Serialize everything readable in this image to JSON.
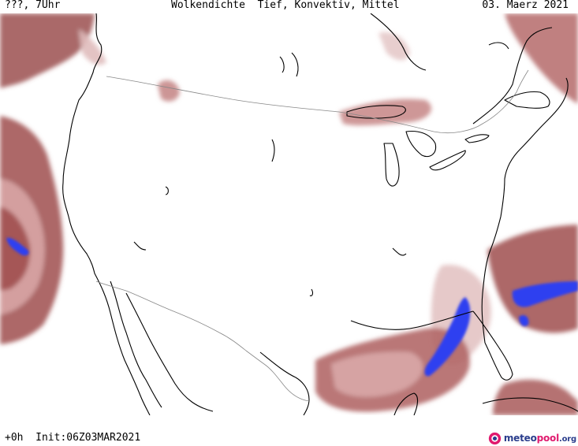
{
  "header": {
    "left": "???, 7Uhr",
    "center": "Wolkendichte  Tief, Konvektiv, Mittel",
    "right": "03. Maerz 2021"
  },
  "footer": {
    "left": "+0h  Init:06Z03MAR2021"
  },
  "logo": {
    "part1": "meteo",
    "part2": "pool",
    "part3": ".org"
  },
  "colors": {
    "cloud_dark": "#9b4f4f",
    "cloud_mid": "#c08080",
    "cloud_light": "#e7c8c8",
    "convective": "#2f3ff0",
    "coast": "#000000",
    "border": "#888888"
  }
}
